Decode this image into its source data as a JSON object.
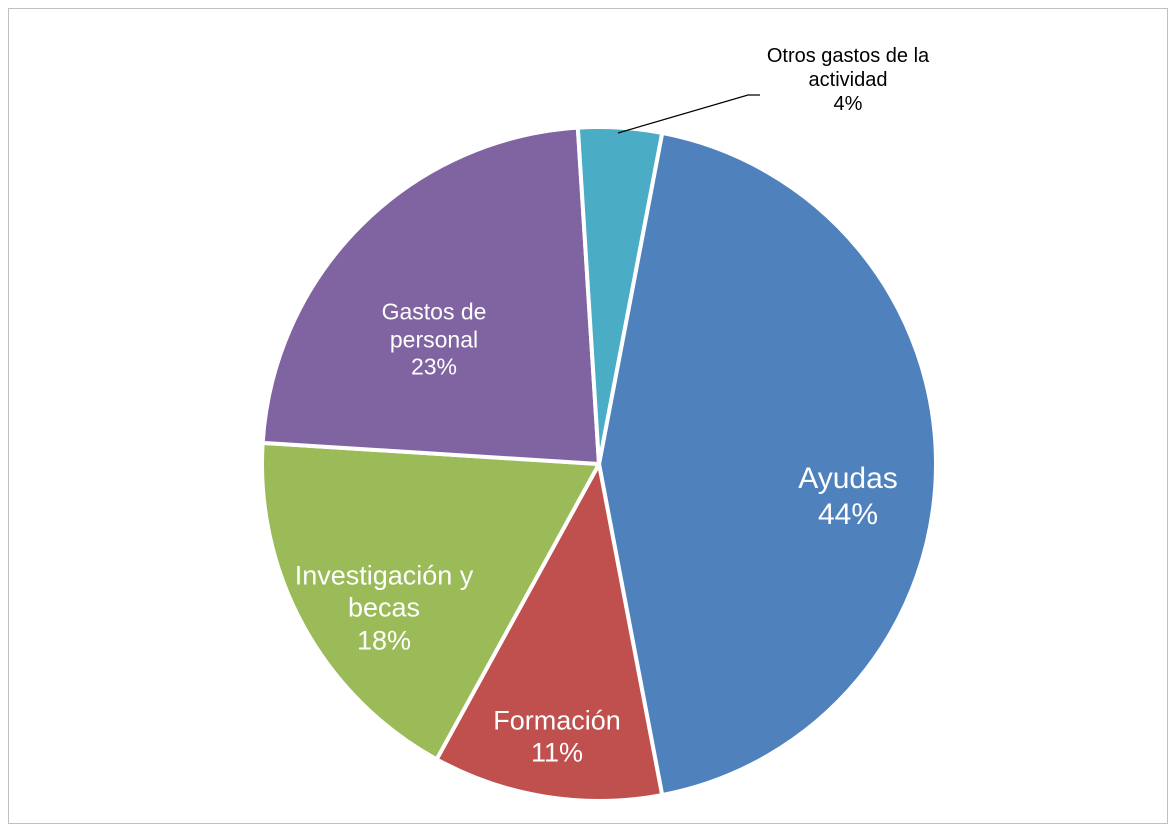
{
  "chart_data": {
    "type": "pie",
    "categories": [
      "Ayudas",
      "Formación",
      "Investigación y becas",
      "Gastos de personal",
      "Otros gastos de la actividad"
    ],
    "values": [
      44,
      11,
      18,
      23,
      4
    ],
    "value_labels": [
      "44%",
      "11%",
      "18%",
      "23%",
      "4%"
    ],
    "colors": [
      "#4f81bd",
      "#c0504d",
      "#9bbb59",
      "#8064a2",
      "#4bacc6"
    ]
  }
}
